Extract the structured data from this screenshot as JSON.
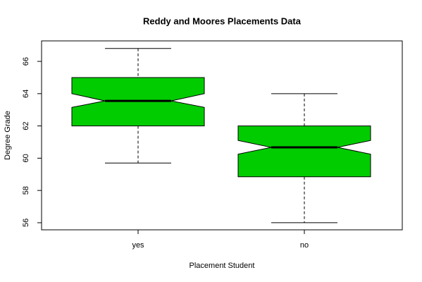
{
  "chart_data": {
    "type": "box",
    "title": "Reddy and Moores Placements Data",
    "xlabel": "Placement Student",
    "ylabel": "Degree Grade",
    "categories": [
      "yes",
      "no"
    ],
    "color": "#00cc00",
    "values": [
      {
        "low": 59.7,
        "q1": 62.0,
        "notch_low": 63.15,
        "median": 63.55,
        "notch_high": 64.0,
        "q3": 65.0,
        "high": 66.8
      },
      {
        "low": 56.0,
        "q1": 58.85,
        "notch_low": 60.25,
        "median": 60.67,
        "notch_high": 61.1,
        "q3": 62.0,
        "high": 64.0
      }
    ],
    "ylim": [
      55.56,
      67.27
    ],
    "yticks": [
      56,
      58,
      60,
      62,
      64,
      66
    ]
  }
}
